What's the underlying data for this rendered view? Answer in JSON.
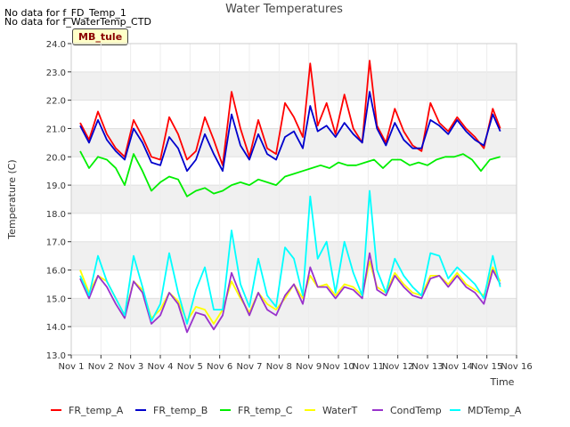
{
  "notices": [
    "No data for f_FD_Temp_1",
    "No data for f_WaterTemp_CTD"
  ],
  "site_label": "MB_tule",
  "chart_data": {
    "type": "line",
    "title": "Water Temperatures",
    "xlabel": "Time",
    "ylabel": "Temperature (C)",
    "ylim": [
      13.0,
      24.0
    ],
    "xlim": [
      1,
      16
    ],
    "x_ticks": [
      1,
      2,
      3,
      4,
      5,
      6,
      7,
      8,
      9,
      10,
      11,
      12,
      13,
      14,
      15,
      16
    ],
    "x_tick_labels": [
      "Nov 1",
      "Nov 2",
      "Nov 3",
      "Nov 4",
      "Nov 5",
      "Nov 6",
      "Nov 7",
      "Nov 8",
      "Nov 9",
      "Nov 10",
      "Nov 11",
      "Nov 12",
      "Nov 13",
      "Nov 14",
      "Nov 15",
      "Nov 16"
    ],
    "y_ticks": [
      13,
      14,
      15,
      16,
      17,
      18,
      19,
      20,
      21,
      22,
      23,
      24
    ],
    "y_tick_labels": [
      "13.0",
      "14.0",
      "15.0",
      "16.0",
      "17.0",
      "18.0",
      "19.0",
      "20.0",
      "21.0",
      "22.0",
      "23.0",
      "24.0"
    ],
    "grid": true,
    "legend_position": "bottom",
    "series": [
      {
        "name": "FR_temp_A",
        "color": "#ff0000",
        "x": [
          1.3,
          1.6,
          1.9,
          2.2,
          2.5,
          2.8,
          3.1,
          3.4,
          3.7,
          4.0,
          4.3,
          4.6,
          4.9,
          5.2,
          5.5,
          5.8,
          6.1,
          6.4,
          6.7,
          7.0,
          7.3,
          7.6,
          7.9,
          8.2,
          8.5,
          8.8,
          9.05,
          9.3,
          9.6,
          9.9,
          10.2,
          10.5,
          10.8,
          11.05,
          11.3,
          11.6,
          11.9,
          12.2,
          12.5,
          12.8,
          13.1,
          13.4,
          13.7,
          14.0,
          14.3,
          14.6,
          14.9,
          15.2,
          15.45
        ],
        "y": [
          21.2,
          20.6,
          21.6,
          20.8,
          20.3,
          20.0,
          21.3,
          20.7,
          20.0,
          19.9,
          21.4,
          20.8,
          19.9,
          20.2,
          21.4,
          20.6,
          19.7,
          22.3,
          21.0,
          20.0,
          21.3,
          20.3,
          20.1,
          21.9,
          21.4,
          20.7,
          23.3,
          21.1,
          21.9,
          20.8,
          22.2,
          21.0,
          20.5,
          23.4,
          21.1,
          20.5,
          21.7,
          20.9,
          20.4,
          20.2,
          21.9,
          21.2,
          20.9,
          21.4,
          21.0,
          20.7,
          20.3,
          21.7,
          21.0
        ]
      },
      {
        "name": "FR_temp_B",
        "color": "#0000cc",
        "x": [
          1.3,
          1.6,
          1.9,
          2.2,
          2.5,
          2.8,
          3.1,
          3.4,
          3.7,
          4.0,
          4.3,
          4.6,
          4.9,
          5.2,
          5.5,
          5.8,
          6.1,
          6.4,
          6.7,
          7.0,
          7.3,
          7.6,
          7.9,
          8.2,
          8.5,
          8.8,
          9.05,
          9.3,
          9.6,
          9.9,
          10.2,
          10.5,
          10.8,
          11.05,
          11.3,
          11.6,
          11.9,
          12.2,
          12.5,
          12.8,
          13.1,
          13.4,
          13.7,
          14.0,
          14.3,
          14.6,
          14.9,
          15.2,
          15.45
        ],
        "y": [
          21.1,
          20.5,
          21.3,
          20.6,
          20.2,
          19.9,
          21.0,
          20.5,
          19.8,
          19.7,
          20.7,
          20.3,
          19.5,
          19.9,
          20.8,
          20.1,
          19.5,
          21.5,
          20.4,
          19.9,
          20.8,
          20.1,
          19.9,
          20.7,
          20.9,
          20.3,
          21.8,
          20.9,
          21.1,
          20.7,
          21.2,
          20.8,
          20.5,
          22.3,
          21.0,
          20.4,
          21.2,
          20.6,
          20.3,
          20.3,
          21.3,
          21.1,
          20.8,
          21.3,
          20.9,
          20.6,
          20.4,
          21.5,
          20.9
        ]
      },
      {
        "name": "FR_temp_C",
        "color": "#00ee00",
        "x": [
          1.3,
          1.6,
          1.9,
          2.2,
          2.5,
          2.8,
          3.1,
          3.4,
          3.7,
          4.0,
          4.3,
          4.6,
          4.9,
          5.2,
          5.5,
          5.8,
          6.1,
          6.4,
          6.7,
          7.0,
          7.3,
          7.6,
          7.9,
          8.2,
          8.5,
          8.8,
          9.1,
          9.4,
          9.7,
          10.0,
          10.3,
          10.6,
          10.9,
          11.2,
          11.5,
          11.8,
          12.1,
          12.4,
          12.7,
          13.0,
          13.3,
          13.6,
          13.9,
          14.2,
          14.5,
          14.8,
          15.1,
          15.45
        ],
        "y": [
          20.2,
          19.6,
          20.0,
          19.9,
          19.6,
          19.0,
          20.1,
          19.5,
          18.8,
          19.1,
          19.3,
          19.2,
          18.6,
          18.8,
          18.9,
          18.7,
          18.8,
          19.0,
          19.1,
          19.0,
          19.2,
          19.1,
          19.0,
          19.3,
          19.4,
          19.5,
          19.6,
          19.7,
          19.6,
          19.8,
          19.7,
          19.7,
          19.8,
          19.9,
          19.6,
          19.9,
          19.9,
          19.7,
          19.8,
          19.7,
          19.9,
          20.0,
          20.0,
          20.1,
          19.9,
          19.5,
          19.9,
          20.0
        ]
      },
      {
        "name": "WaterT",
        "color": "#ffff00",
        "x": [
          1.3,
          1.6,
          1.9,
          2.2,
          2.5,
          2.8,
          3.1,
          3.4,
          3.7,
          4.0,
          4.3,
          4.6,
          4.9,
          5.2,
          5.5,
          5.8,
          6.1,
          6.4,
          6.7,
          7.0,
          7.3,
          7.6,
          7.9,
          8.2,
          8.5,
          8.8,
          9.05,
          9.3,
          9.6,
          9.9,
          10.2,
          10.5,
          10.8,
          11.05,
          11.3,
          11.6,
          11.9,
          12.2,
          12.5,
          12.8,
          13.1,
          13.4,
          13.7,
          14.0,
          14.3,
          14.6,
          14.9,
          15.2,
          15.45
        ],
        "y": [
          16.0,
          15.2,
          15.8,
          15.6,
          15.0,
          14.4,
          15.6,
          15.3,
          14.3,
          14.6,
          15.2,
          14.9,
          14.2,
          14.7,
          14.6,
          14.1,
          14.6,
          15.6,
          15.0,
          14.5,
          15.2,
          14.8,
          14.6,
          15.0,
          15.5,
          15.0,
          15.8,
          15.4,
          15.5,
          15.1,
          15.5,
          15.4,
          15.1,
          16.3,
          15.4,
          15.2,
          15.9,
          15.5,
          15.2,
          15.1,
          15.8,
          15.8,
          15.5,
          15.9,
          15.5,
          15.3,
          15.1,
          16.1,
          15.6
        ]
      },
      {
        "name": "CondTemp",
        "color": "#9933cc",
        "x": [
          1.3,
          1.6,
          1.9,
          2.2,
          2.5,
          2.8,
          3.1,
          3.4,
          3.7,
          4.0,
          4.3,
          4.6,
          4.9,
          5.2,
          5.5,
          5.8,
          6.1,
          6.4,
          6.7,
          7.0,
          7.3,
          7.6,
          7.9,
          8.2,
          8.5,
          8.8,
          9.05,
          9.3,
          9.6,
          9.9,
          10.2,
          10.5,
          10.8,
          11.05,
          11.3,
          11.6,
          11.9,
          12.2,
          12.5,
          12.8,
          13.1,
          13.4,
          13.7,
          14.0,
          14.3,
          14.6,
          14.9,
          15.2,
          15.45
        ],
        "y": [
          15.7,
          15.0,
          15.8,
          15.4,
          14.8,
          14.3,
          15.6,
          15.2,
          14.1,
          14.4,
          15.2,
          14.8,
          13.8,
          14.5,
          14.4,
          13.9,
          14.4,
          15.9,
          15.1,
          14.4,
          15.2,
          14.6,
          14.4,
          15.1,
          15.5,
          14.8,
          16.1,
          15.4,
          15.4,
          15.0,
          15.4,
          15.3,
          15.0,
          16.6,
          15.3,
          15.1,
          15.8,
          15.4,
          15.1,
          15.0,
          15.7,
          15.8,
          15.4,
          15.8,
          15.4,
          15.2,
          14.8,
          16.0,
          15.5
        ]
      },
      {
        "name": "MDTemp_A",
        "color": "#00ffff",
        "x": [
          1.3,
          1.6,
          1.9,
          2.2,
          2.5,
          2.8,
          3.1,
          3.4,
          3.7,
          4.0,
          4.3,
          4.6,
          4.9,
          5.2,
          5.5,
          5.8,
          6.1,
          6.4,
          6.7,
          7.0,
          7.3,
          7.6,
          7.9,
          8.2,
          8.5,
          8.8,
          9.05,
          9.3,
          9.6,
          9.9,
          10.2,
          10.5,
          10.8,
          11.05,
          11.3,
          11.6,
          11.9,
          12.2,
          12.5,
          12.8,
          13.1,
          13.4,
          13.7,
          14.0,
          14.3,
          14.6,
          14.9,
          15.2,
          15.45
        ],
        "y": [
          15.8,
          15.1,
          16.5,
          15.6,
          15.0,
          14.4,
          16.5,
          15.4,
          14.2,
          14.8,
          16.6,
          15.2,
          14.1,
          15.3,
          16.1,
          14.6,
          14.6,
          17.4,
          15.5,
          14.7,
          16.4,
          15.1,
          14.7,
          16.8,
          16.4,
          15.1,
          18.6,
          16.4,
          17.0,
          15.2,
          17.0,
          15.9,
          15.1,
          18.8,
          16.0,
          15.2,
          16.4,
          15.8,
          15.4,
          15.1,
          16.6,
          16.5,
          15.7,
          16.1,
          15.8,
          15.5,
          15.0,
          16.5,
          15.4
        ]
      }
    ]
  }
}
